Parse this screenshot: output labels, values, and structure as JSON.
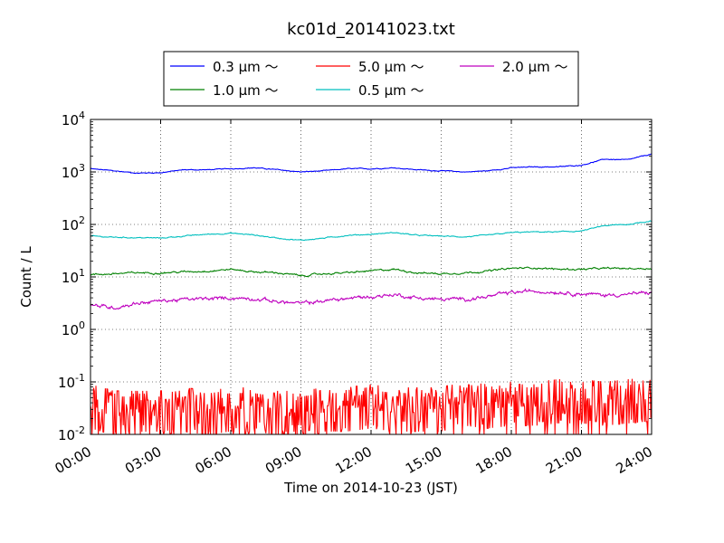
{
  "chart_data": {
    "type": "line",
    "title": "kc01d_20141023.txt",
    "xlabel": "Time on 2014-10-23 (JST)",
    "ylabel": "Count / L",
    "xlim": [
      "00:00",
      "24:00"
    ],
    "ylim": [
      0.01,
      10000
    ],
    "yscale": "log",
    "grid": true,
    "legend_position": "top-center",
    "x_ticks": [
      "00:00",
      "03:00",
      "06:00",
      "09:00",
      "12:00",
      "15:00",
      "18:00",
      "21:00",
      "24:00"
    ],
    "y_ticks": [
      {
        "base": "10",
        "exp": "-2"
      },
      {
        "base": "10",
        "exp": "-1"
      },
      {
        "base": "10",
        "exp": "0"
      },
      {
        "base": "10",
        "exp": "1"
      },
      {
        "base": "10",
        "exp": "2"
      },
      {
        "base": "10",
        "exp": "3"
      },
      {
        "base": "10",
        "exp": "4"
      }
    ],
    "x": [
      "00:00",
      "01:00",
      "02:00",
      "03:00",
      "04:00",
      "05:00",
      "06:00",
      "07:00",
      "08:00",
      "09:00",
      "10:00",
      "11:00",
      "12:00",
      "13:00",
      "14:00",
      "15:00",
      "16:00",
      "17:00",
      "18:00",
      "19:00",
      "20:00",
      "21:00",
      "22:00",
      "23:00",
      "24:00"
    ],
    "series": [
      {
        "name": "0.3 μm ～",
        "color": "#0000ff",
        "noise": 0.01,
        "values": [
          1150,
          1050,
          950,
          970,
          1100,
          1100,
          1150,
          1200,
          1100,
          1000,
          1050,
          1150,
          1150,
          1200,
          1100,
          1050,
          1000,
          1050,
          1200,
          1250,
          1250,
          1350,
          1750,
          1700,
          2200
        ]
      },
      {
        "name": "1.0 μm ～",
        "color": "#008000",
        "noise": 0.02,
        "values": [
          11,
          11.5,
          12,
          12,
          12.5,
          13,
          14,
          12.5,
          12,
          10.5,
          11.5,
          12,
          13,
          14,
          12,
          11.5,
          12,
          13,
          14.5,
          15,
          14,
          14,
          14.5,
          14.5,
          14.5
        ]
      },
      {
        "name": "5.0 μm ～",
        "color": "#ff0000",
        "noise": "spiky",
        "values": [
          0.04,
          0.03,
          0.03,
          0.03,
          0.035,
          0.03,
          0.035,
          0.035,
          0.03,
          0.03,
          0.035,
          0.035,
          0.04,
          0.035,
          0.035,
          0.035,
          0.045,
          0.04,
          0.045,
          0.045,
          0.05,
          0.05,
          0.045,
          0.05,
          0.055
        ]
      },
      {
        "name": "0.5 μm ～",
        "color": "#00bfbf",
        "noise": 0.012,
        "values": [
          60,
          57,
          56,
          55,
          60,
          65,
          68,
          63,
          55,
          50,
          55,
          62,
          65,
          70,
          62,
          60,
          58,
          62,
          70,
          72,
          72,
          75,
          95,
          100,
          118
        ]
      },
      {
        "name": "2.0 μm ～",
        "color": "#bf00bf",
        "noise": 0.04,
        "values": [
          2.9,
          2.6,
          3.2,
          3.5,
          3.7,
          3.8,
          4.0,
          3.9,
          3.4,
          3.1,
          3.5,
          3.9,
          4.2,
          4.6,
          4.0,
          3.7,
          3.8,
          4.2,
          5.0,
          5.4,
          5.2,
          4.8,
          4.5,
          4.7,
          5.0
        ]
      }
    ]
  }
}
